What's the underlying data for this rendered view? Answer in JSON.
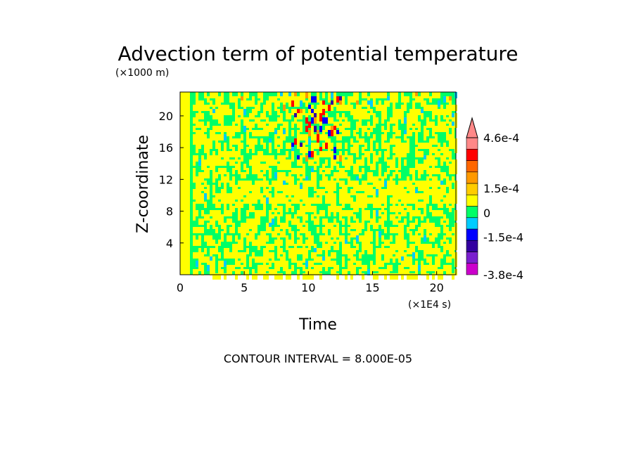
{
  "chart_data": {
    "type": "heatmap",
    "title": "Advection term of potential temperature",
    "xlabel": "Time",
    "ylabel": "Z-coordinate",
    "x_unit_label": "(×1E4 s)",
    "y_unit_label": "(×1000 m)",
    "xlim": [
      0,
      21.5
    ],
    "ylim": [
      0,
      23
    ],
    "x_ticks": [
      "0",
      "5",
      "10",
      "15",
      "20"
    ],
    "x_tick_values": [
      0,
      5,
      10,
      15,
      20
    ],
    "y_ticks": [
      "4",
      "8",
      "12",
      "16",
      "20"
    ],
    "y_tick_values": [
      4,
      8,
      12,
      16,
      20
    ],
    "footer": "CONTOUR INTERVAL = 8.000E-05",
    "colorbar": {
      "colors": [
        "#cc00cc",
        "#7a1fcf",
        "#3300a0",
        "#0000ff",
        "#00ccff",
        "#00ff66",
        "#ffff00",
        "#ffcc00",
        "#ff9900",
        "#ff6600",
        "#ff0000",
        "#ff8888"
      ],
      "labels": [
        "4.6e-4",
        "1.5e-4",
        "0",
        "-1.5e-4",
        "-3.8e-4"
      ],
      "label_values": [
        0.00046,
        0.00015,
        0,
        -0.00015,
        -0.00038
      ],
      "min": -0.00038,
      "max": 0.00046
    }
  }
}
